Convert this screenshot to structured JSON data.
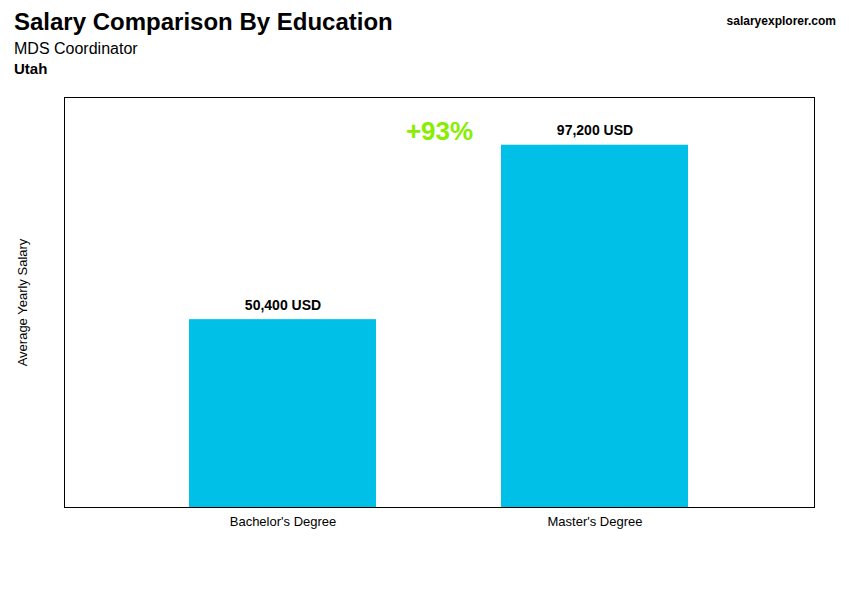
{
  "chart_data": {
    "type": "bar",
    "title": "Salary Comparison By Education",
    "subtitle": "MDS Coordinator",
    "categories": [
      "Bachelor's Degree",
      "Master's Degree"
    ],
    "values": [
      50400,
      97200
    ],
    "value_labels": [
      "50,400 USD",
      "97,200 USD"
    ],
    "data_labels": true,
    "color": "#00c0e8",
    "ylabel": "Average Yearly Salary",
    "ylim": [
      0,
      110000
    ],
    "tick_labels": "x",
    "grid": false,
    "annotations": [
      {
        "text": "+93%",
        "color": "#88ee00"
      },
      {
        "text": "Utah"
      },
      {
        "text": "salaryexplorer.com"
      }
    ]
  }
}
